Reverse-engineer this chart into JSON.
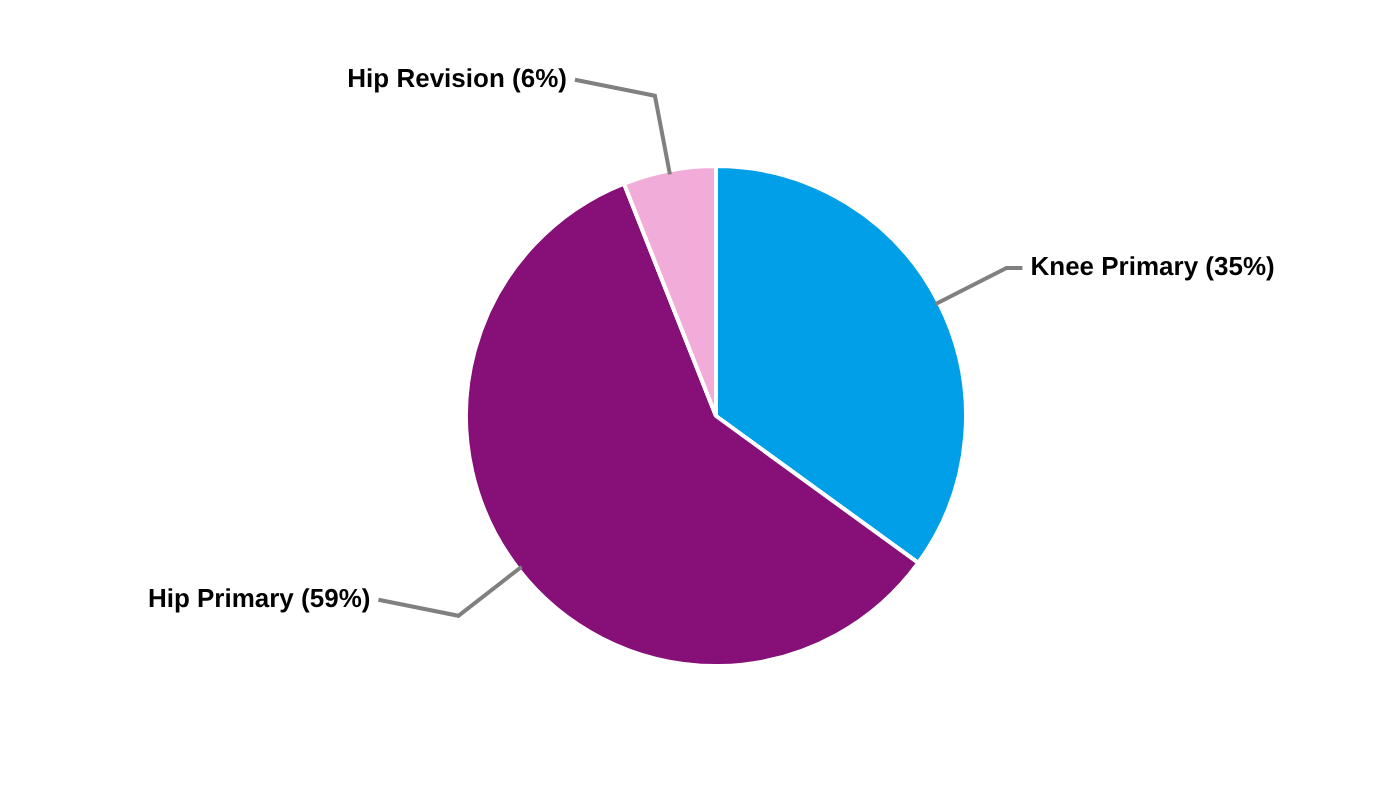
{
  "chart_data": {
    "type": "pie",
    "categories": [
      "Knee Primary (35%)",
      "Hip Primary (59%)",
      "Hip Revision (6%)"
    ],
    "values": [
      35,
      59,
      6
    ],
    "colors": [
      "#009fe8",
      "#861078",
      "#f2acd9"
    ],
    "legend": false
  }
}
